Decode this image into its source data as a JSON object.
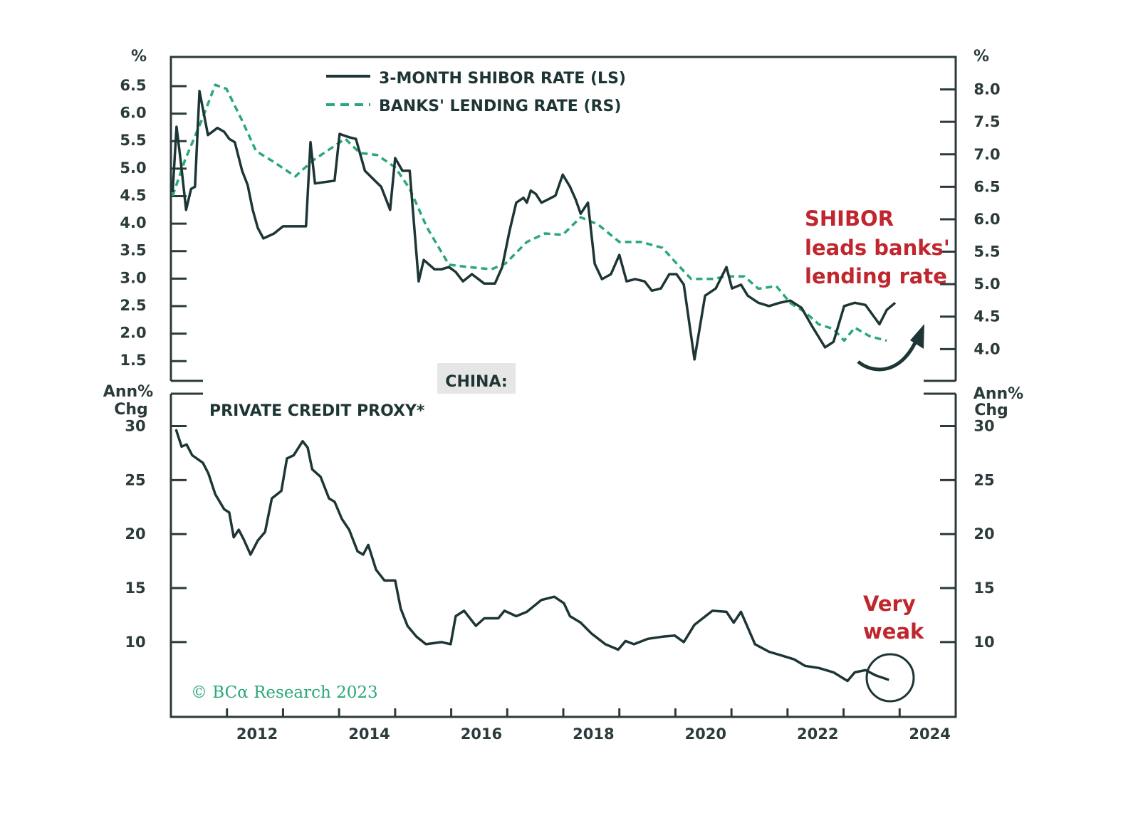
{
  "chart_data": {
    "type": "line",
    "title": "CHINA:",
    "colors": {
      "shibor": "#1d3535",
      "lending": "#2aa876",
      "annotation": "#c0262d",
      "axis": "#2b3a3a",
      "title_box": "#e6e6e6"
    },
    "xlim": [
      2011,
      2025
    ],
    "x_tick_labels": [
      "2012",
      "2014",
      "2016",
      "2018",
      "2020",
      "2022",
      "2024"
    ],
    "copyright": "© BCα Research 2023",
    "top_panel": {
      "left_unit": "%",
      "right_unit": "%",
      "left_ylim": [
        1.14,
        7.03
      ],
      "right_ylim": [
        3.51,
        8.5
      ],
      "left_ticks": [
        "6.5",
        "6.0",
        "5.5",
        "5.0",
        "4.5",
        "4.0",
        "3.5",
        "3.0",
        "2.5",
        "2.0",
        "1.5"
      ],
      "right_ticks": [
        "8.0",
        "7.5",
        "7.0",
        "6.5",
        "6.0",
        "5.5",
        "5.0",
        "4.5",
        "4.0"
      ],
      "annotation": [
        "SHIBOR",
        "leads banks'",
        "lending rate"
      ],
      "series": [
        {
          "name": "3-MONTH SHIBOR RATE (LS)",
          "axis": "left",
          "style": "solid",
          "points": [
            [
              2011.03,
              4.57
            ],
            [
              2011.1,
              5.76
            ],
            [
              2011.18,
              5.09
            ],
            [
              2011.27,
              4.25
            ],
            [
              2011.36,
              4.63
            ],
            [
              2011.43,
              4.67
            ],
            [
              2011.51,
              6.41
            ],
            [
              2011.66,
              5.61
            ],
            [
              2011.83,
              5.74
            ],
            [
              2011.95,
              5.67
            ],
            [
              2012.04,
              5.54
            ],
            [
              2012.14,
              5.48
            ],
            [
              2012.27,
              4.96
            ],
            [
              2012.37,
              4.7
            ],
            [
              2012.46,
              4.25
            ],
            [
              2012.55,
              3.92
            ],
            [
              2012.65,
              3.73
            ],
            [
              2012.84,
              3.82
            ],
            [
              2013.0,
              3.95
            ],
            [
              2013.41,
              3.95
            ],
            [
              2013.49,
              5.48
            ],
            [
              2013.57,
              4.73
            ],
            [
              2013.92,
              4.78
            ],
            [
              2014.01,
              5.63
            ],
            [
              2014.18,
              5.57
            ],
            [
              2014.3,
              5.54
            ],
            [
              2014.46,
              4.96
            ],
            [
              2014.62,
              4.8
            ],
            [
              2014.75,
              4.67
            ],
            [
              2014.91,
              4.25
            ],
            [
              2015.0,
              5.19
            ],
            [
              2015.13,
              4.96
            ],
            [
              2015.26,
              4.96
            ],
            [
              2015.42,
              2.95
            ],
            [
              2015.51,
              3.34
            ],
            [
              2015.7,
              3.17
            ],
            [
              2015.83,
              3.17
            ],
            [
              2015.96,
              3.21
            ],
            [
              2016.08,
              3.12
            ],
            [
              2016.21,
              2.95
            ],
            [
              2016.37,
              3.08
            ],
            [
              2016.59,
              2.91
            ],
            [
              2016.78,
              2.91
            ],
            [
              2016.91,
              3.21
            ],
            [
              2017.04,
              3.86
            ],
            [
              2017.16,
              4.38
            ],
            [
              2017.29,
              4.47
            ],
            [
              2017.35,
              4.38
            ],
            [
              2017.42,
              4.6
            ],
            [
              2017.51,
              4.54
            ],
            [
              2017.61,
              4.38
            ],
            [
              2017.73,
              4.44
            ],
            [
              2017.86,
              4.51
            ],
            [
              2017.99,
              4.89
            ],
            [
              2018.12,
              4.67
            ],
            [
              2018.22,
              4.44
            ],
            [
              2018.31,
              4.18
            ],
            [
              2018.44,
              4.38
            ],
            [
              2018.56,
              3.27
            ],
            [
              2018.69,
              2.99
            ],
            [
              2018.85,
              3.08
            ],
            [
              2019.0,
              3.43
            ],
            [
              2019.13,
              2.95
            ],
            [
              2019.28,
              2.99
            ],
            [
              2019.45,
              2.95
            ],
            [
              2019.58,
              2.78
            ],
            [
              2019.74,
              2.82
            ],
            [
              2019.89,
              3.08
            ],
            [
              2020.02,
              3.08
            ],
            [
              2020.15,
              2.89
            ],
            [
              2020.34,
              1.53
            ],
            [
              2020.53,
              2.69
            ],
            [
              2020.72,
              2.82
            ],
            [
              2020.91,
              3.21
            ],
            [
              2021.01,
              2.82
            ],
            [
              2021.17,
              2.89
            ],
            [
              2021.29,
              2.69
            ],
            [
              2021.48,
              2.56
            ],
            [
              2021.67,
              2.5
            ],
            [
              2021.86,
              2.56
            ],
            [
              2022.05,
              2.6
            ],
            [
              2022.25,
              2.47
            ],
            [
              2022.44,
              2.13
            ],
            [
              2022.67,
              1.75
            ],
            [
              2022.82,
              1.85
            ],
            [
              2023.01,
              2.5
            ],
            [
              2023.2,
              2.56
            ],
            [
              2023.39,
              2.52
            ],
            [
              2023.64,
              2.17
            ],
            [
              2023.77,
              2.43
            ],
            [
              2023.92,
              2.56
            ]
          ]
        },
        {
          "name": "BANKS' LENDING RATE (RS)",
          "axis": "right",
          "style": "dashed",
          "points": [
            [
              2011.03,
              6.36
            ],
            [
              2011.25,
              6.91
            ],
            [
              2011.57,
              7.57
            ],
            [
              2011.79,
              8.07
            ],
            [
              2011.99,
              8.01
            ],
            [
              2012.27,
              7.52
            ],
            [
              2012.52,
              7.05
            ],
            [
              2012.84,
              6.88
            ],
            [
              2013.22,
              6.66
            ],
            [
              2013.54,
              6.91
            ],
            [
              2013.92,
              7.13
            ],
            [
              2014.11,
              7.24
            ],
            [
              2014.37,
              7.02
            ],
            [
              2014.68,
              6.99
            ],
            [
              2015.0,
              6.8
            ],
            [
              2015.26,
              6.47
            ],
            [
              2015.57,
              5.87
            ],
            [
              2015.96,
              5.3
            ],
            [
              2016.34,
              5.26
            ],
            [
              2016.72,
              5.23
            ],
            [
              2016.97,
              5.32
            ],
            [
              2017.35,
              5.65
            ],
            [
              2017.67,
              5.78
            ],
            [
              2017.99,
              5.76
            ],
            [
              2018.31,
              6.03
            ],
            [
              2018.62,
              5.92
            ],
            [
              2019.0,
              5.65
            ],
            [
              2019.39,
              5.65
            ],
            [
              2019.77,
              5.56
            ],
            [
              2020.02,
              5.32
            ],
            [
              2020.28,
              5.08
            ],
            [
              2020.66,
              5.08
            ],
            [
              2020.91,
              5.12
            ],
            [
              2021.23,
              5.12
            ],
            [
              2021.48,
              4.93
            ],
            [
              2021.8,
              4.97
            ],
            [
              2022.05,
              4.71
            ],
            [
              2022.31,
              4.57
            ],
            [
              2022.56,
              4.38
            ],
            [
              2022.82,
              4.31
            ],
            [
              2023.01,
              4.13
            ],
            [
              2023.2,
              4.33
            ],
            [
              2023.46,
              4.2
            ],
            [
              2023.77,
              4.13
            ]
          ]
        }
      ]
    },
    "bottom_panel": {
      "unit": [
        "Ann%",
        "Chg"
      ],
      "ylim": [
        3.07,
        33.0
      ],
      "ticks": [
        "30",
        "25",
        "20",
        "15",
        "10"
      ],
      "annotation": [
        "Very",
        "weak"
      ],
      "series": [
        {
          "name": "PRIVATE CREDIT PROXY*",
          "style": "solid",
          "points": [
            [
              2011.09,
              29.7
            ],
            [
              2011.19,
              28.1
            ],
            [
              2011.28,
              28.3
            ],
            [
              2011.38,
              27.3
            ],
            [
              2011.57,
              26.6
            ],
            [
              2011.67,
              25.6
            ],
            [
              2011.79,
              23.7
            ],
            [
              2011.95,
              22.3
            ],
            [
              2012.04,
              22.0
            ],
            [
              2012.12,
              19.7
            ],
            [
              2012.21,
              20.4
            ],
            [
              2012.3,
              19.5
            ],
            [
              2012.42,
              18.1
            ],
            [
              2012.55,
              19.4
            ],
            [
              2012.68,
              20.2
            ],
            [
              2012.8,
              23.3
            ],
            [
              2012.97,
              24.0
            ],
            [
              2013.07,
              27.0
            ],
            [
              2013.19,
              27.3
            ],
            [
              2013.35,
              28.6
            ],
            [
              2013.44,
              28.0
            ],
            [
              2013.52,
              26.0
            ],
            [
              2013.67,
              25.3
            ],
            [
              2013.82,
              23.3
            ],
            [
              2013.92,
              23.0
            ],
            [
              2014.05,
              21.4
            ],
            [
              2014.18,
              20.4
            ],
            [
              2014.33,
              18.4
            ],
            [
              2014.43,
              18.1
            ],
            [
              2014.52,
              19.0
            ],
            [
              2014.66,
              16.7
            ],
            [
              2014.81,
              15.7
            ],
            [
              2015.0,
              15.7
            ],
            [
              2015.1,
              13.1
            ],
            [
              2015.22,
              11.5
            ],
            [
              2015.38,
              10.5
            ],
            [
              2015.55,
              9.8
            ],
            [
              2015.83,
              10.0
            ],
            [
              2015.99,
              9.8
            ],
            [
              2016.08,
              12.4
            ],
            [
              2016.23,
              12.9
            ],
            [
              2016.44,
              11.5
            ],
            [
              2016.59,
              12.2
            ],
            [
              2016.84,
              12.2
            ],
            [
              2016.95,
              12.9
            ],
            [
              2017.16,
              12.4
            ],
            [
              2017.35,
              12.8
            ],
            [
              2017.61,
              13.9
            ],
            [
              2017.84,
              14.2
            ],
            [
              2018.01,
              13.6
            ],
            [
              2018.12,
              12.4
            ],
            [
              2018.31,
              11.8
            ],
            [
              2018.5,
              10.8
            ],
            [
              2018.75,
              9.8
            ],
            [
              2018.98,
              9.3
            ],
            [
              2019.11,
              10.1
            ],
            [
              2019.26,
              9.8
            ],
            [
              2019.51,
              10.3
            ],
            [
              2019.77,
              10.5
            ],
            [
              2019.99,
              10.6
            ],
            [
              2020.15,
              10.0
            ],
            [
              2020.34,
              11.6
            ],
            [
              2020.66,
              12.9
            ],
            [
              2020.91,
              12.8
            ],
            [
              2021.04,
              11.8
            ],
            [
              2021.17,
              12.8
            ],
            [
              2021.42,
              9.8
            ],
            [
              2021.67,
              9.1
            ],
            [
              2021.93,
              8.7
            ],
            [
              2022.12,
              8.4
            ],
            [
              2022.31,
              7.8
            ],
            [
              2022.56,
              7.6
            ],
            [
              2022.82,
              7.2
            ],
            [
              2023.07,
              6.4
            ],
            [
              2023.2,
              7.2
            ],
            [
              2023.39,
              7.4
            ],
            [
              2023.58,
              6.9
            ],
            [
              2023.81,
              6.5
            ]
          ]
        }
      ]
    }
  }
}
